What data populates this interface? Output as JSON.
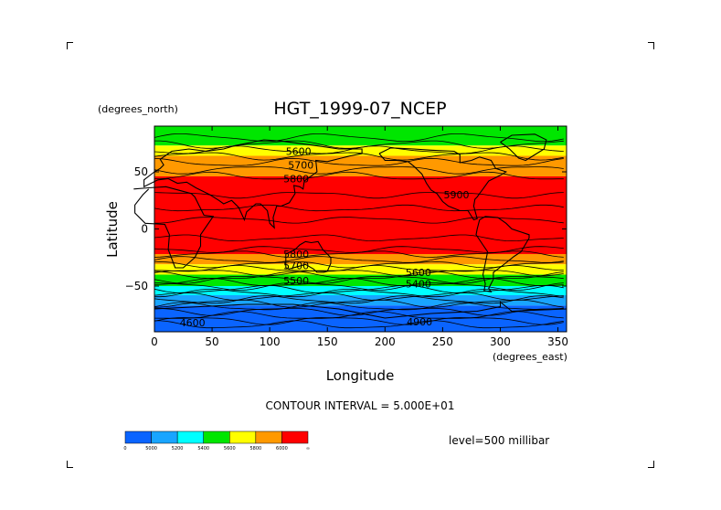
{
  "chart_data": {
    "type": "heatmap",
    "title": "HGT_1999-07_NCEP",
    "xlabel": "Longitude",
    "ylabel": "Latitude",
    "x_unit": "(degrees_east)",
    "y_unit": "(degrees_north)",
    "xlim": [
      0,
      357.5
    ],
    "ylim": [
      -90,
      90
    ],
    "x_ticks": [
      0,
      50,
      100,
      150,
      200,
      250,
      300,
      350
    ],
    "y_ticks": [
      50,
      0,
      -50
    ],
    "contour_interval_text": "CONTOUR INTERVAL = 5.000E+01",
    "level_text": "level=500 millibar",
    "colorbar": {
      "labels": [
        "0",
        "5000",
        "5200",
        "5400",
        "5600",
        "5800",
        "6000",
        "∞"
      ],
      "colors": [
        "#0a64ff",
        "#19a5ff",
        "#00ffff",
        "#00e600",
        "#ffff00",
        "#ff9900",
        "#ff0000"
      ]
    },
    "latitude_bands": [
      {
        "lat_top": 90,
        "lat_bottom": 73,
        "value_range": [
          5400,
          5600
        ]
      },
      {
        "lat_top": 73,
        "lat_bottom": 64,
        "value_range": [
          5600,
          5800
        ]
      },
      {
        "lat_top": 64,
        "lat_bottom": 46,
        "value_range": [
          5800,
          6000
        ]
      },
      {
        "lat_top": 46,
        "lat_bottom": -22,
        "value_range": [
          6000,
          6200
        ]
      },
      {
        "lat_top": -22,
        "lat_bottom": -31,
        "value_range": [
          5800,
          6000
        ]
      },
      {
        "lat_top": -31,
        "lat_bottom": -40,
        "value_range": [
          5600,
          5800
        ]
      },
      {
        "lat_top": -40,
        "lat_bottom": -50,
        "value_range": [
          5400,
          5600
        ]
      },
      {
        "lat_top": -50,
        "lat_bottom": -58,
        "value_range": [
          5200,
          5400
        ]
      },
      {
        "lat_top": -58,
        "lat_bottom": -67,
        "value_range": [
          5000,
          5200
        ]
      },
      {
        "lat_top": -67,
        "lat_bottom": -90,
        "value_range": [
          0,
          5000
        ]
      }
    ],
    "contour_labels": [
      {
        "text": "5600",
        "lon": 125,
        "lat": 68
      },
      {
        "text": "5700",
        "lon": 127,
        "lat": 56
      },
      {
        "text": "5800",
        "lon": 123,
        "lat": 44
      },
      {
        "text": "5900",
        "lon": 262,
        "lat": 30
      },
      {
        "text": "5800",
        "lon": 123,
        "lat": -22
      },
      {
        "text": "5700",
        "lon": 123,
        "lat": -32
      },
      {
        "text": "5500",
        "lon": 123,
        "lat": -45
      },
      {
        "text": "5600",
        "lon": 229,
        "lat": -38
      },
      {
        "text": "5400",
        "lon": 229,
        "lat": -48
      },
      {
        "text": "4600",
        "lon": 33,
        "lat": -82
      },
      {
        "text": "4900",
        "lon": 230,
        "lat": -81
      }
    ]
  }
}
